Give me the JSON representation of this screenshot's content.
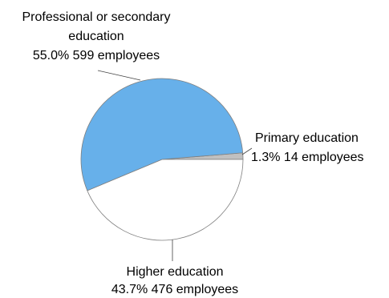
{
  "chart_data": {
    "type": "pie",
    "title": "",
    "slices": [
      {
        "label": "Primary education",
        "detail": "1.3% 14 employees",
        "percent": 1.3,
        "count": 14,
        "color": "#c0c0c0"
      },
      {
        "label": "Higher education",
        "detail": "43.7% 476 employees",
        "percent": 43.7,
        "count": 476,
        "color": "#ffffff"
      },
      {
        "label_lines": [
          "Professional or secondary",
          "education"
        ],
        "detail": "55.0% 599 employees",
        "percent": 55.0,
        "count": 599,
        "color": "#67b0ea"
      }
    ],
    "legend": "none"
  }
}
